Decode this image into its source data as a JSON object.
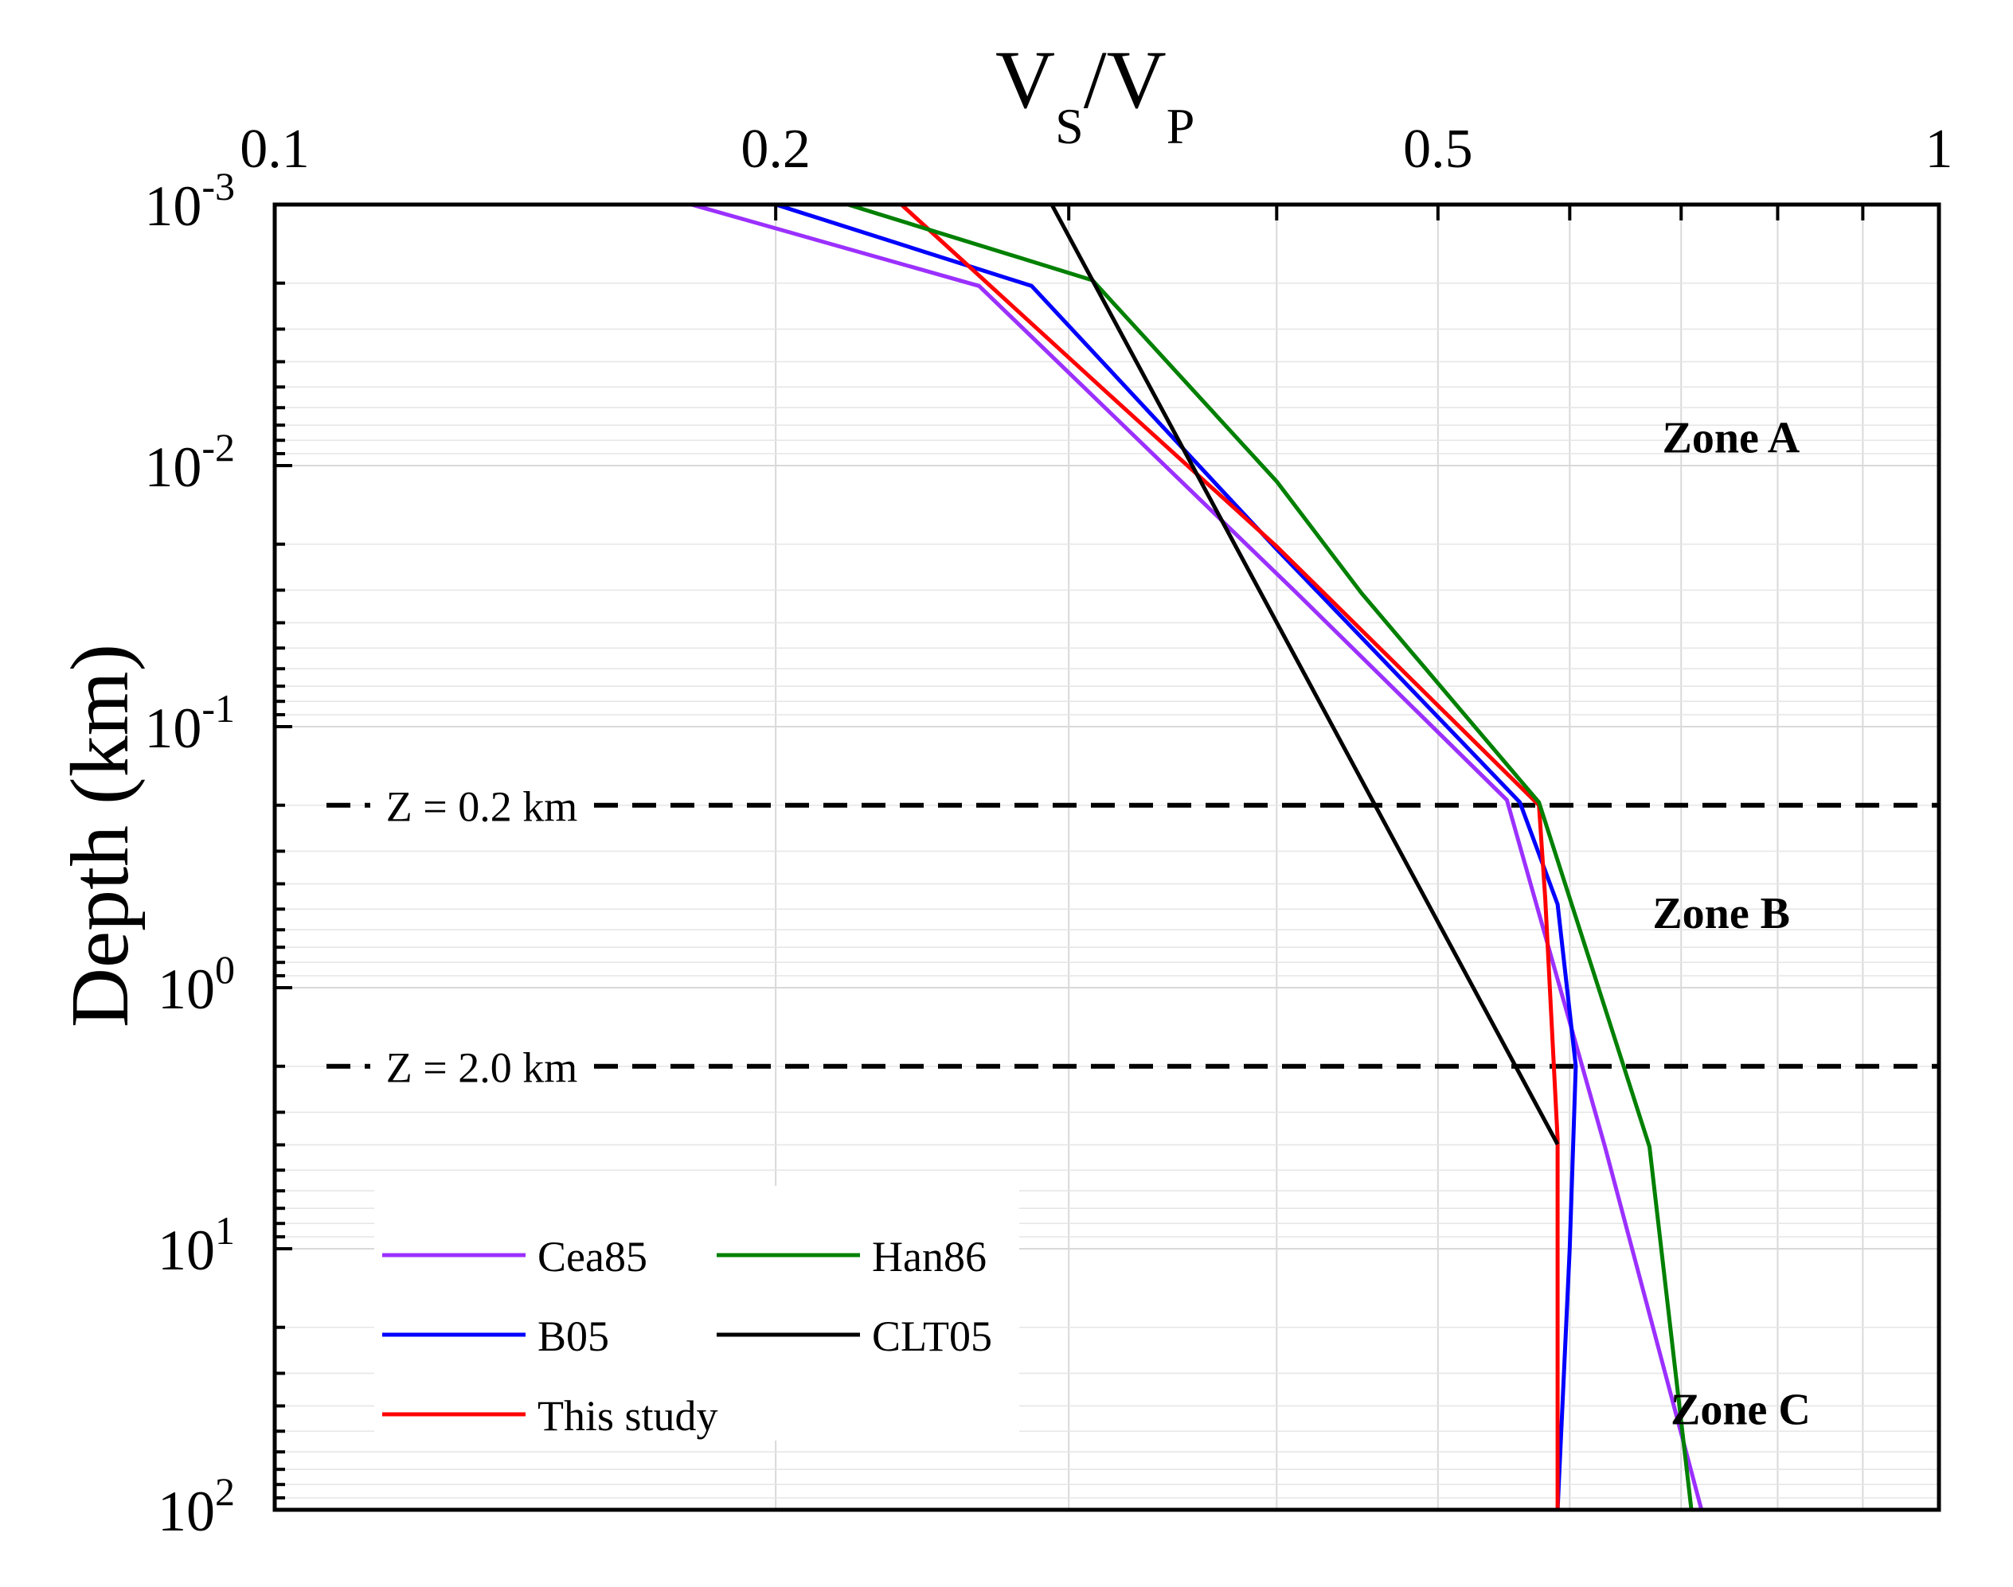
{
  "chart_data": {
    "type": "line",
    "title_base": "V",
    "title_sub1": "S",
    "title_slash": "/V",
    "title_sub2": "P",
    "ylabel": "Depth (km)",
    "x_scale": "log",
    "xlim": [
      0.1,
      1
    ],
    "x_ticks": [
      {
        "value": 0.1,
        "label": "0.1"
      },
      {
        "value": 0.2,
        "label": "0.2"
      },
      {
        "value": 0.5,
        "label": "0.5"
      },
      {
        "value": 1,
        "label": "1"
      }
    ],
    "y_scale": "log",
    "y_reversed": true,
    "ylim": [
      0.001,
      100
    ],
    "y_ticks": [
      {
        "value": 0.001,
        "base": "10",
        "exp": "-3"
      },
      {
        "value": 0.01,
        "base": "10",
        "exp": "-2"
      },
      {
        "value": 0.1,
        "base": "10",
        "exp": "-1"
      },
      {
        "value": 1,
        "base": "10",
        "exp": "0"
      },
      {
        "value": 10,
        "base": "10",
        "exp": "1"
      },
      {
        "value": 100,
        "base": "10",
        "exp": "2"
      }
    ],
    "grid": true,
    "legend_position": "bottom-left",
    "series": [
      {
        "name": "Cea85",
        "color": "#9b30ff",
        "points": [
          [
            0.178,
            0.001
          ],
          [
            0.265,
            0.00205
          ],
          [
            0.41,
            0.0302
          ],
          [
            0.55,
            0.191
          ],
          [
            0.63,
            4.07
          ],
          [
            0.72,
            100
          ]
        ]
      },
      {
        "name": "B05",
        "color": "#0000ff",
        "points": [
          [
            0.2,
            0.001
          ],
          [
            0.285,
            0.00205
          ],
          [
            0.4,
            0.0209
          ],
          [
            0.56,
            0.195
          ],
          [
            0.59,
            0.479
          ],
          [
            0.605,
            1.995
          ],
          [
            0.6,
            10.0
          ],
          [
            0.59,
            100
          ]
        ]
      },
      {
        "name": "This study",
        "color": "#ff0000",
        "points": [
          [
            0.238,
            0.001
          ],
          [
            0.32,
            0.00562
          ],
          [
            0.4,
            0.0204
          ],
          [
            0.575,
            0.2
          ],
          [
            0.58,
            0.457
          ],
          [
            0.59,
            3.8
          ],
          [
            0.59,
            100
          ]
        ]
      },
      {
        "name": "Han86",
        "color": "#008000",
        "points": [
          [
            0.221,
            0.001
          ],
          [
            0.31,
            0.00195
          ],
          [
            0.4,
            0.0115
          ],
          [
            0.45,
            0.0309
          ],
          [
            0.575,
            0.195
          ],
          [
            0.67,
            4.07
          ],
          [
            0.71,
            100
          ]
        ]
      },
      {
        "name": "CLT05",
        "color": "#000000",
        "points": [
          [
            0.293,
            0.001
          ],
          [
            0.59,
            3.98
          ]
        ]
      }
    ],
    "reference_lines": [
      {
        "depth": 0.2,
        "label": "Z = 0.2 km"
      },
      {
        "depth": 2.0,
        "label": "Z = 2.0 km"
      }
    ],
    "zone_labels": [
      {
        "label": "Zone A",
        "x": 0.75,
        "y": 0.0089
      },
      {
        "label": "Zone B",
        "x": 0.74,
        "y": 0.59
      },
      {
        "label": "Zone C",
        "x": 0.76,
        "y": 47.0
      }
    ]
  }
}
